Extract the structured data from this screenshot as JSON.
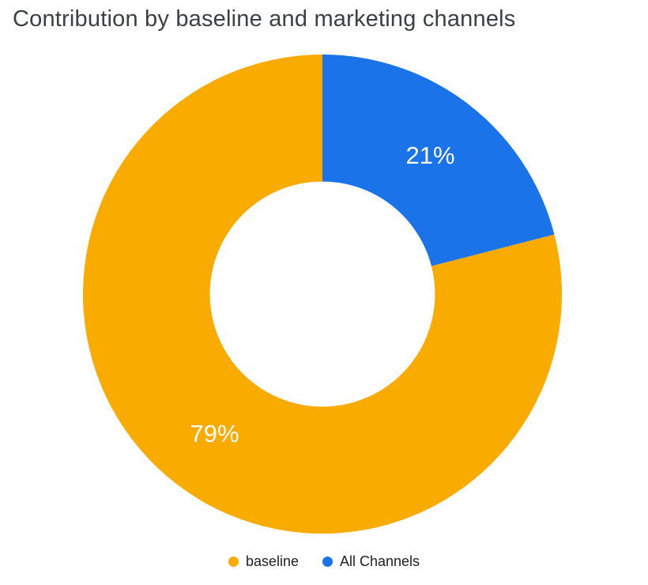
{
  "chart_data": {
    "type": "pie",
    "donut": true,
    "title": "Contribution by baseline and marketing channels",
    "inner_radius_ratio": 0.47,
    "legend_position": "bottom",
    "direction": "clockwise",
    "start_angle_deg": 0,
    "slice_label_color": "#ffffff",
    "title_color": "#3c4043",
    "slices": [
      {
        "label": "baseline",
        "value": 79,
        "pct_label": "79%",
        "color": "#F9AB00"
      },
      {
        "label": "All Channels",
        "value": 21,
        "pct_label": "21%",
        "color": "#1A73E8"
      }
    ]
  },
  "legend": {
    "items": [
      {
        "label": "baseline"
      },
      {
        "label": "All Channels"
      }
    ]
  }
}
